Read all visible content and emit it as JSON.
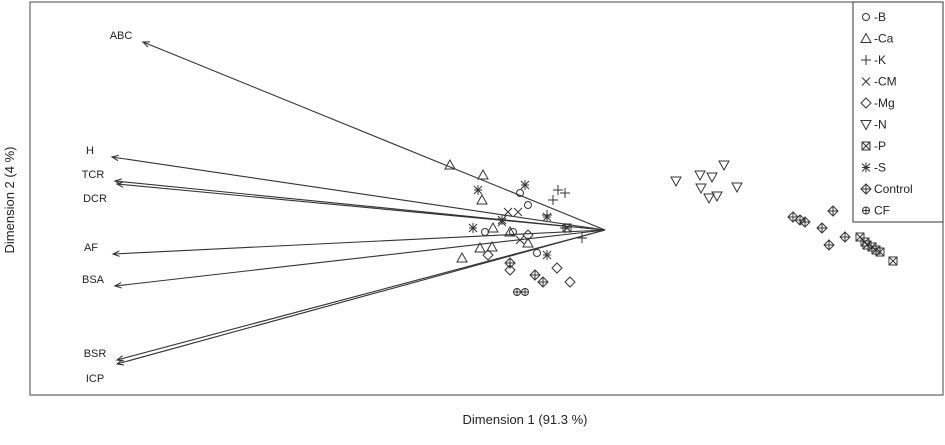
{
  "chart_data": {
    "type": "scatter",
    "title": "",
    "xlabel": "Dimension 1 (91.3 %)",
    "ylabel": "Dimension 2 (4 %)",
    "xlim": [
      -5.75,
      3.38
    ],
    "ylim": [
      -1.65,
      2.28
    ],
    "grid": false,
    "legend_placement": "top-right",
    "vectors": [
      {
        "label": "ABC",
        "x": -4.62,
        "y": 1.88
      },
      {
        "label": "H",
        "x": -4.93,
        "y": 0.73
      },
      {
        "label": "TCR",
        "x": -4.9,
        "y": 0.49
      },
      {
        "label": "DCR",
        "x": -4.88,
        "y": 0.46
      },
      {
        "label": "AF",
        "x": -4.92,
        "y": -0.24
      },
      {
        "label": "BSA",
        "x": -4.9,
        "y": -0.56
      },
      {
        "label": "BSR",
        "x": -4.88,
        "y": -1.3
      },
      {
        "label": "ICP",
        "x": -4.88,
        "y": -1.34
      }
    ],
    "series": [
      {
        "name": "-B",
        "marker": "circle",
        "points": [
          [
            -0.85,
            0.37
          ],
          [
            -0.77,
            0.25
          ],
          [
            -0.68,
            -0.23
          ],
          [
            -0.92,
            -0.02
          ],
          [
            -1.2,
            -0.02
          ]
        ]
      },
      {
        "name": "-Ca",
        "marker": "triangle-up",
        "points": [
          [
            -1.55,
            0.65
          ],
          [
            -1.22,
            0.55
          ],
          [
            -1.23,
            0.3
          ],
          [
            -1.12,
            0.02
          ],
          [
            -1.25,
            -0.18
          ],
          [
            -1.13,
            -0.17
          ],
          [
            -1.43,
            -0.28
          ],
          [
            -0.95,
            -0.02
          ],
          [
            -0.77,
            -0.13
          ]
        ]
      },
      {
        "name": "-K",
        "marker": "plus",
        "points": [
          [
            -0.47,
            0.4
          ],
          [
            -0.4,
            0.37
          ],
          [
            -0.52,
            0.3
          ],
          [
            -0.4,
            0.02
          ],
          [
            -0.23,
            -0.08
          ],
          [
            -0.58,
            0.15
          ]
        ]
      },
      {
        "name": "-CM",
        "marker": "cross",
        "points": [
          [
            -0.97,
            0.18
          ],
          [
            -1.03,
            0.08
          ],
          [
            -0.87,
            0.18
          ],
          [
            -0.85,
            -0.1
          ]
        ]
      },
      {
        "name": "-Mg",
        "marker": "diamond",
        "points": [
          [
            -0.95,
            -0.4
          ],
          [
            -0.48,
            -0.38
          ],
          [
            -0.35,
            -0.52
          ],
          [
            -0.77,
            -0.05
          ],
          [
            -1.17,
            -0.25
          ]
        ]
      },
      {
        "name": "-N",
        "marker": "triangle-down",
        "points": [
          [
            0.71,
            0.49
          ],
          [
            0.95,
            0.55
          ],
          [
            1.07,
            0.53
          ],
          [
            1.19,
            0.65
          ],
          [
            0.96,
            0.42
          ],
          [
            1.32,
            0.43
          ],
          [
            1.04,
            0.32
          ],
          [
            1.12,
            0.34
          ]
        ]
      },
      {
        "name": "-P",
        "marker": "square-x",
        "points": [
          [
            2.55,
            -0.07
          ],
          [
            2.62,
            -0.15
          ],
          [
            2.67,
            -0.17
          ],
          [
            2.71,
            -0.2
          ],
          [
            2.75,
            -0.22
          ],
          [
            2.88,
            -0.31
          ],
          [
            2.6,
            -0.12
          ],
          [
            -0.38,
            0.02
          ]
        ]
      },
      {
        "name": "-S",
        "marker": "asterisk",
        "points": [
          [
            -1.27,
            0.4
          ],
          [
            -0.8,
            0.45
          ],
          [
            -1.32,
            0.02
          ],
          [
            -0.58,
            0.13
          ],
          [
            -0.58,
            -0.25
          ],
          [
            -1.03,
            0.1
          ]
        ]
      },
      {
        "name": "Control",
        "marker": "diamond-plus",
        "points": [
          [
            1.88,
            0.13
          ],
          [
            1.95,
            0.1
          ],
          [
            2.0,
            0.08
          ],
          [
            2.17,
            0.02
          ],
          [
            2.28,
            0.19
          ],
          [
            2.24,
            -0.15
          ],
          [
            2.4,
            -0.07
          ],
          [
            -0.7,
            -0.45
          ],
          [
            -0.62,
            -0.52
          ],
          [
            -0.95,
            -0.33
          ]
        ]
      },
      {
        "name": "CF",
        "marker": "circle-plus",
        "points": [
          [
            -0.88,
            -0.62
          ],
          [
            -0.8,
            -0.62
          ]
        ]
      }
    ]
  }
}
